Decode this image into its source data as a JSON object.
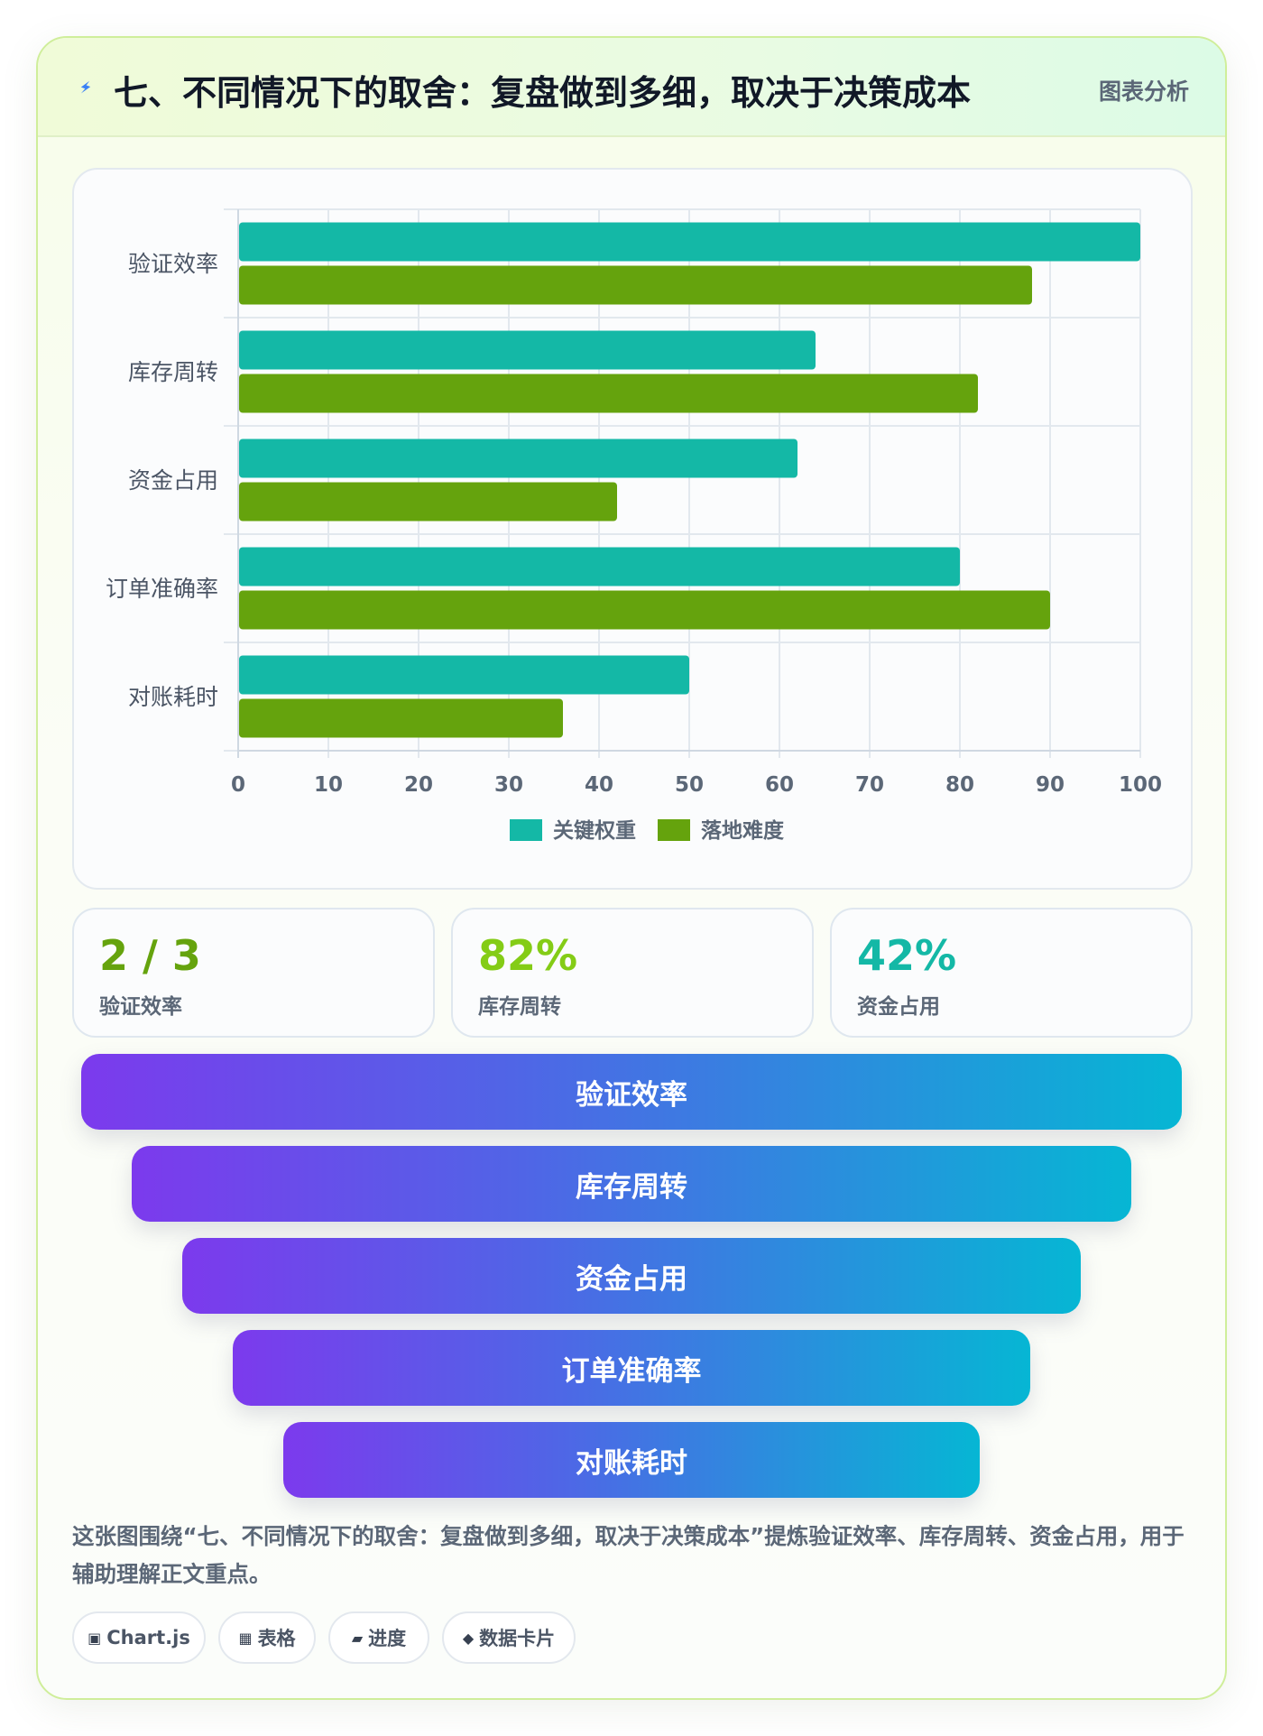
{
  "header": {
    "title": "七、不同情况下的取舍：复盘做到多细，取决于决策成本",
    "tag": "图表分析",
    "icon": "bolt-icon"
  },
  "chart_data": {
    "type": "bar",
    "orientation": "horizontal",
    "categories": [
      "验证效率",
      "库存周转",
      "资金占用",
      "订单准确率",
      "对账耗时"
    ],
    "series": [
      {
        "name": "关键权重",
        "color": "#14b8a6",
        "values": [
          100,
          64,
          62,
          80,
          50
        ]
      },
      {
        "name": "落地难度",
        "color": "#65a30d",
        "values": [
          88,
          82,
          42,
          90,
          36
        ]
      }
    ],
    "xlim": [
      0,
      100
    ],
    "xticks": [
      0,
      10,
      20,
      30,
      40,
      50,
      60,
      70,
      80,
      90,
      100
    ],
    "grid": true,
    "legend": "bottom"
  },
  "stats": [
    {
      "value": "2 / 3",
      "label": "验证效率",
      "color": "#65a30d"
    },
    {
      "value": "82%",
      "label": "库存周转",
      "color": "#84cc16"
    },
    {
      "value": "42%",
      "label": "资金占用",
      "color": "#14b8a6"
    }
  ],
  "funnel": [
    "验证效率",
    "库存周转",
    "资金占用",
    "订单准确率",
    "对账耗时"
  ],
  "description": "这张图围绕“七、不同情况下的取舍：复盘做到多细，取决于决策成本”提炼验证效率、库存周转、资金占用，用于辅助理解正文重点。",
  "tags": [
    {
      "icon": "▣",
      "icon_name": "chart-icon",
      "label": "Chart.js"
    },
    {
      "icon": "▦",
      "icon_name": "table-icon",
      "label": "表格"
    },
    {
      "icon": "▰",
      "icon_name": "progress-icon",
      "label": "进度"
    },
    {
      "icon": "◆",
      "icon_name": "data-card-icon",
      "label": "数据卡片"
    }
  ]
}
